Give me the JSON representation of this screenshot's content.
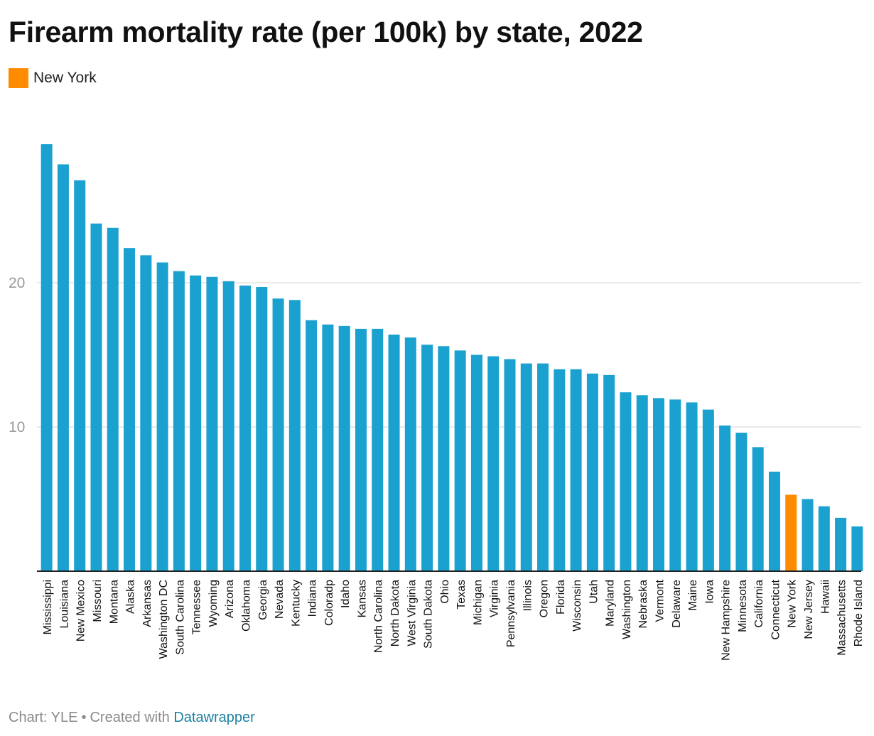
{
  "title": "Firearm mortality rate (per 100k) by state, 2022",
  "legend": {
    "label": "New York",
    "color": "#ff8c00"
  },
  "footer": {
    "source": "Chart: YLE",
    "separator": "•",
    "created": "Created with",
    "tool": "Datawrapper"
  },
  "colors": {
    "bar": "#1aa1cf",
    "highlight": "#ff8c00",
    "grid": "#e4e4e4",
    "axis": "#222222",
    "tick": "#9a9a9a",
    "label": "#111111"
  },
  "chart_data": {
    "type": "bar",
    "title": "Firearm mortality rate (per 100k) by state, 2022",
    "xlabel": "",
    "ylabel": "",
    "ylim": [
      0,
      29.5
    ],
    "yticks": [
      10,
      20
    ],
    "grid": true,
    "highlight": "New York",
    "categories": [
      "Mississippi",
      "Louisiana",
      "New Mexico",
      "Missouri",
      "Montana",
      "Alaska",
      "Arkansas",
      "Washington DC",
      "South Carolina",
      "Tennessee",
      "Wyoming",
      "Arizona",
      "Oklahoma",
      "Georgia",
      "Nevada",
      "Kentucky",
      "Indiana",
      "Coloradp",
      "Idaho",
      "Kansas",
      "North Carolina",
      "North Dakota",
      "West Virginia",
      "South Dakota",
      "Ohio",
      "Texas",
      "Michigan",
      "Virginia",
      "Pennsylvania",
      "Illinois",
      "Oregon",
      "Florida",
      "Wisconsin",
      "Utah",
      "Maryland",
      "Washington",
      "Nebraska",
      "Vermont",
      "Delaware",
      "Maine",
      "Iowa",
      "New Hampshire",
      "Minnesota",
      "California",
      "Connecticut",
      "New York",
      "New Jersey",
      "Hawaii",
      "Massachusetts",
      "Rhode Island"
    ],
    "values": [
      29.6,
      28.2,
      27.1,
      24.1,
      23.8,
      22.4,
      21.9,
      21.4,
      20.8,
      20.5,
      20.4,
      20.1,
      19.8,
      19.7,
      18.9,
      18.8,
      17.4,
      17.1,
      17.0,
      16.8,
      16.8,
      16.4,
      16.2,
      15.7,
      15.6,
      15.3,
      15.0,
      14.9,
      14.7,
      14.4,
      14.4,
      14.0,
      14.0,
      13.7,
      13.6,
      12.4,
      12.2,
      12.0,
      11.9,
      11.7,
      11.2,
      10.1,
      9.6,
      8.6,
      6.9,
      5.3,
      5.0,
      4.5,
      3.7,
      3.1
    ]
  }
}
